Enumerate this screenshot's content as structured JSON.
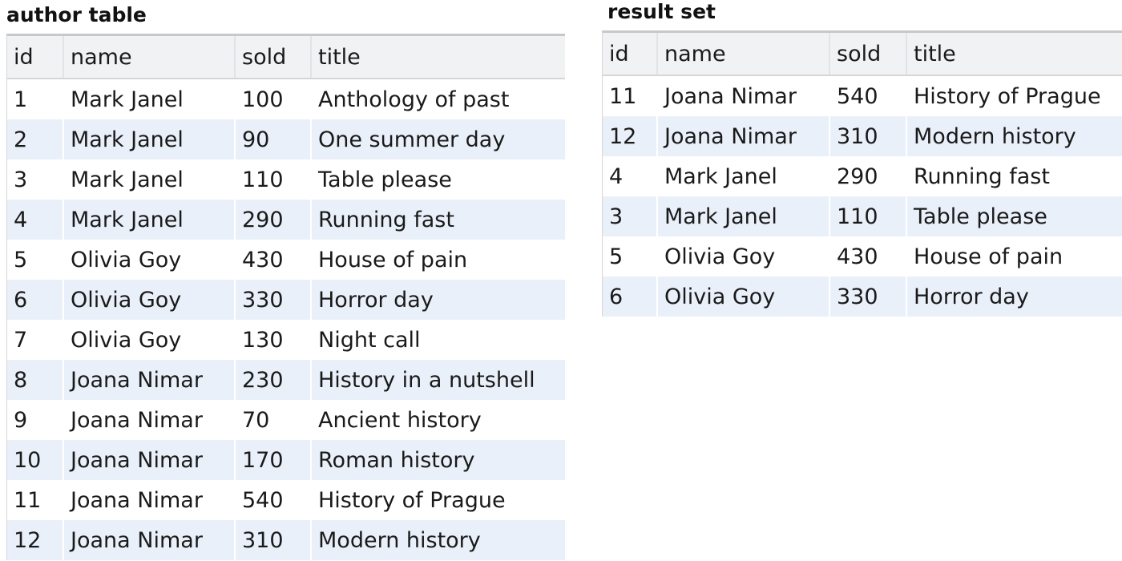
{
  "left_panel": {
    "title": "author table",
    "columns": [
      "id",
      "name",
      "sold",
      "title"
    ],
    "rows": [
      [
        "1",
        "Mark Janel",
        "100",
        "Anthology of past"
      ],
      [
        "2",
        "Mark Janel",
        "90",
        "One summer day"
      ],
      [
        "3",
        "Mark Janel",
        "110",
        "Table please"
      ],
      [
        "4",
        "Mark Janel",
        "290",
        "Running fast"
      ],
      [
        "5",
        "Olivia Goy",
        "430",
        "House of pain"
      ],
      [
        "6",
        "Olivia Goy",
        "330",
        "Horror day"
      ],
      [
        "7",
        "Olivia Goy",
        "130",
        "Night call"
      ],
      [
        "8",
        "Joana Nimar",
        "230",
        "History in a nutshell"
      ],
      [
        "9",
        "Joana Nimar",
        "70",
        "Ancient history"
      ],
      [
        "10",
        "Joana Nimar",
        "170",
        "Roman history"
      ],
      [
        "11",
        "Joana Nimar",
        "540",
        "History of Prague"
      ],
      [
        "12",
        "Joana Nimar",
        "310",
        "Modern history"
      ]
    ]
  },
  "right_panel": {
    "title": "result set",
    "columns": [
      "id",
      "name",
      "sold",
      "title"
    ],
    "rows": [
      [
        "11",
        "Joana Nimar",
        "540",
        "History of Prague"
      ],
      [
        "12",
        "Joana Nimar",
        "310",
        "Modern history"
      ],
      [
        "4",
        "Mark Janel",
        "290",
        "Running fast"
      ],
      [
        "3",
        "Mark Janel",
        "110",
        "Table please"
      ],
      [
        "5",
        "Olivia Goy",
        "430",
        "House of pain"
      ],
      [
        "6",
        "Olivia Goy",
        "330",
        "Horror day"
      ]
    ]
  },
  "colors": {
    "header_bg": "#f1f2f4",
    "stripe_bg": "#eaf0fa",
    "border": "#c8c8c8"
  }
}
